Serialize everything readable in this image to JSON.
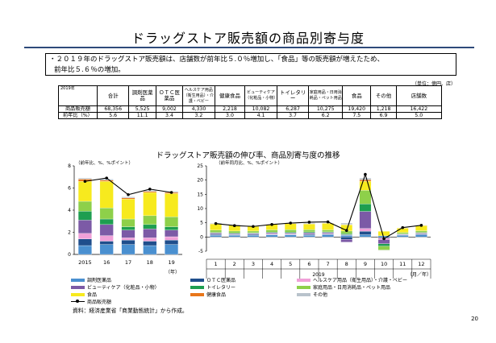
{
  "page": {
    "title": "ドラッグストア販売額の商品別寄与度",
    "summary_line1": "・２０１９年のドラッグストア販売額は、店舗数が前年比５.０％増加し、「食品」等の販売額が増えたため、",
    "summary_line2": "前年比５.６％の増加。",
    "unit_note": "（単位：億円、店）",
    "chart_heading": "ドラッグストア販売額の伸び率、商品別寄与度の推移",
    "footnote": "資料：経済産業省「商業動態統計」から作成。",
    "page_number": "20"
  },
  "table": {
    "year_label": "2019年",
    "headers": [
      "合計",
      "調剤医薬品",
      "ＯＴＣ医薬品",
      "ヘルスケア用品（衛生用品）・介護・ベビー",
      "健康食品",
      "ビューティケア（化粧品・小物）",
      "トイレタリー",
      "家庭用品・日用消耗品・ペット用品",
      "食品",
      "その他",
      "店舗数"
    ],
    "rows": [
      {
        "label": "商品販売額",
        "values": [
          "68,356",
          "5,525",
          "9,002",
          "4,330",
          "2,218",
          "10,082",
          "6,287",
          "10,275",
          "19,420",
          "1,218",
          "16,422"
        ]
      },
      {
        "label": "前年比（%）",
        "values": [
          "5.6",
          "11.1",
          "3.4",
          "3.2",
          "3.0",
          "4.1",
          "3.7",
          "6.2",
          "7.5",
          "6.9",
          "5.0"
        ]
      }
    ]
  },
  "colors": {
    "dispensing": "#4a90d0",
    "otc": "#1f4e8c",
    "healthcare": "#f0a0d8",
    "beauty": "#7c5aa6",
    "toiletry": "#1e9e50",
    "household": "#8ed04a",
    "food": "#f7ea1e",
    "health_food": "#e8761a",
    "other": "#b9c3cc",
    "total_line": "#000000",
    "title_rule": "#2e4a7a"
  },
  "legend": [
    {
      "key": "dispensing",
      "label": "調剤医薬品"
    },
    {
      "key": "otc",
      "label": "ＯＴＣ医薬品"
    },
    {
      "key": "healthcare",
      "label": "ヘルスケア用品（衛生用品）・介護・ベビー"
    },
    {
      "key": "beauty",
      "label": "ビューティケア（化粧品・小物）"
    },
    {
      "key": "toiletry",
      "label": "トイレタリー"
    },
    {
      "key": "household",
      "label": "家庭用品・日用消耗品・ペット用品"
    },
    {
      "key": "food",
      "label": "食品"
    },
    {
      "key": "health_food",
      "label": "健康食品"
    },
    {
      "key": "other",
      "label": "その他"
    },
    {
      "key": "total_line",
      "label": "商品販売額"
    }
  ],
  "chart_data": [
    {
      "type": "bar",
      "stacked": true,
      "ylabel": "（前年比、%、%ポイント）",
      "ylim": [
        0,
        8
      ],
      "yticks": [
        0,
        2,
        4,
        6,
        8
      ],
      "categories": [
        "2015",
        "16",
        "17",
        "18",
        "19"
      ],
      "x_unit": "（年）",
      "series": [
        {
          "key": "dispensing",
          "values": [
            0.8,
            0.9,
            0.9,
            0.8,
            0.9
          ]
        },
        {
          "key": "otc",
          "values": [
            0.6,
            0.3,
            0.4,
            0.4,
            0.4
          ]
        },
        {
          "key": "healthcare",
          "values": [
            0.5,
            0.5,
            0.2,
            0.3,
            0.3
          ]
        },
        {
          "key": "beauty",
          "values": [
            1.2,
            1.0,
            0.7,
            0.8,
            0.6
          ]
        },
        {
          "key": "toiletry",
          "values": [
            0.8,
            0.5,
            0.3,
            0.4,
            0.3
          ]
        },
        {
          "key": "household",
          "values": [
            0.9,
            1.0,
            0.7,
            0.8,
            0.9
          ]
        },
        {
          "key": "food",
          "values": [
            1.8,
            2.4,
            1.8,
            2.1,
            2.1
          ]
        },
        {
          "key": "health_food",
          "values": [
            0.2,
            0.1,
            0.1,
            0.1,
            0.1
          ]
        },
        {
          "key": "other",
          "values": [
            0.1,
            0.1,
            0.1,
            0.1,
            0.1
          ]
        }
      ],
      "total_line": {
        "key": "total_line",
        "values": [
          6.6,
          6.9,
          5.4,
          5.9,
          5.6
        ]
      }
    },
    {
      "type": "bar",
      "stacked": true,
      "ylabel": "（前年同月比、%、%ポイント）",
      "ylim": [
        -5,
        25
      ],
      "yticks": [
        -5,
        0,
        5,
        10,
        15,
        20,
        25
      ],
      "categories": [
        "1",
        "2",
        "3",
        "4",
        "5",
        "6",
        "7",
        "8",
        "9",
        "10",
        "11",
        "12"
      ],
      "year_label": "2019",
      "x_unit": "（月／年）",
      "series": [
        {
          "key": "dispensing",
          "values": [
            0.6,
            0.6,
            0.6,
            0.7,
            0.7,
            0.6,
            0.8,
            0.6,
            0.8,
            0.4,
            0.6,
            0.8
          ]
        },
        {
          "key": "otc",
          "values": [
            0.3,
            0.2,
            0.3,
            0.2,
            0.2,
            0.3,
            0.2,
            -0.8,
            1.2,
            -0.4,
            0.1,
            0.2
          ]
        },
        {
          "key": "healthcare",
          "values": [
            0.1,
            0.1,
            0.1,
            0.2,
            0.2,
            0.1,
            0.2,
            0.2,
            1.0,
            -0.5,
            0.1,
            0.1
          ]
        },
        {
          "key": "beauty",
          "values": [
            0.4,
            0.3,
            0.3,
            0.4,
            0.3,
            0.5,
            0.4,
            -1.0,
            6.0,
            -1.5,
            0.2,
            0.3
          ]
        },
        {
          "key": "toiletry",
          "values": [
            0.2,
            0.2,
            0.2,
            0.2,
            0.3,
            0.3,
            0.2,
            0.4,
            2.6,
            -0.8,
            0.1,
            0.2
          ]
        },
        {
          "key": "household",
          "values": [
            0.8,
            0.7,
            0.6,
            0.8,
            0.9,
            0.8,
            0.7,
            0.9,
            4.8,
            -1.4,
            0.5,
            0.6
          ]
        },
        {
          "key": "food",
          "values": [
            2.2,
            2.0,
            1.6,
            1.9,
            2.1,
            2.0,
            2.3,
            2.2,
            3.2,
            1.6,
            1.5,
            1.8
          ]
        },
        {
          "key": "health_food",
          "values": [
            0.1,
            0.1,
            0.1,
            0.1,
            0.1,
            0.1,
            0.1,
            0.1,
            0.5,
            -0.1,
            0.1,
            0.1
          ]
        },
        {
          "key": "other",
          "values": [
            0.2,
            0.2,
            0.2,
            0.1,
            0.2,
            0.3,
            0.1,
            0.5,
            0.6,
            -0.1,
            0.1,
            0.1
          ]
        }
      ],
      "total_line": {
        "key": "total_line",
        "values": [
          4.7,
          4.0,
          3.7,
          4.4,
          4.9,
          5.2,
          5.3,
          2.3,
          22.0,
          -0.6,
          3.3,
          4.1
        ]
      }
    }
  ]
}
